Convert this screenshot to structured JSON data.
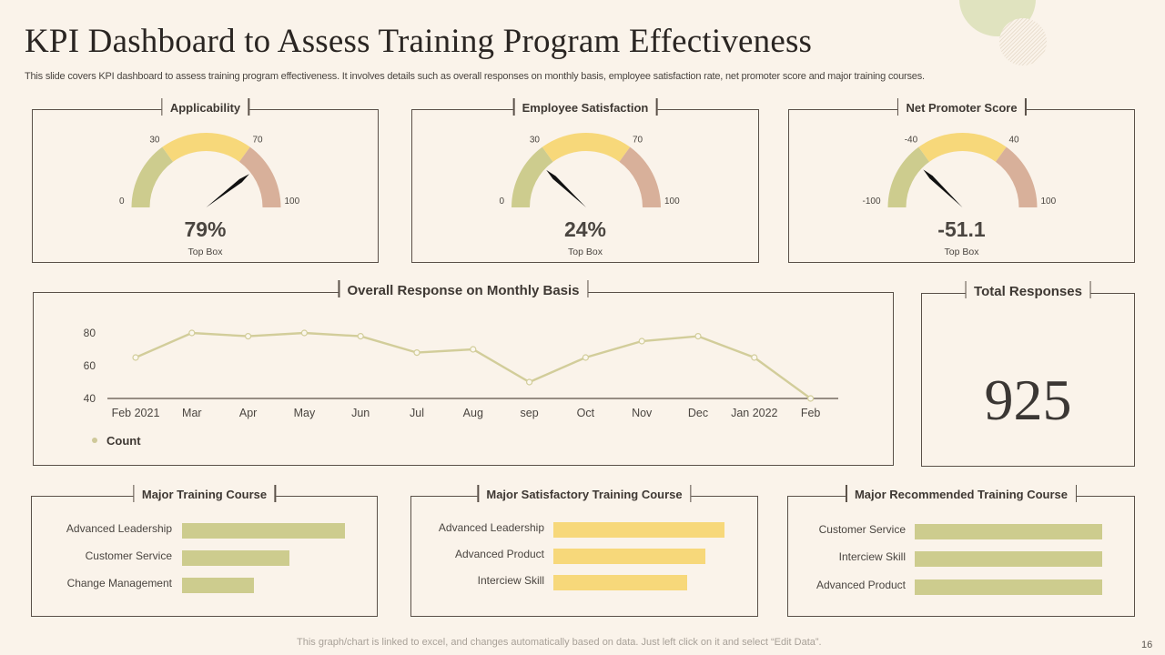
{
  "header": {
    "title": "KPI Dashboard to Assess Training Program Effectiveness",
    "subtitle": "This slide covers KPI dashboard to assess training program effectiveness. It involves details such as overall responses on monthly basis, employee satisfaction rate, net promoter score and major training courses."
  },
  "colors": {
    "background": "#faf3ea",
    "green": "#cdcc8e",
    "yellow": "#f7d87a",
    "peach": "#d8b09a",
    "line": "#d2cd9a",
    "border": "#5a5048"
  },
  "gauges": [
    {
      "title": "Applicability",
      "value": 79,
      "display": "79%",
      "sublabel": "Top Box",
      "min": 0,
      "max": 100,
      "bands": [
        0,
        30,
        70,
        100
      ],
      "labels": [
        "0",
        "30",
        "70",
        "100"
      ]
    },
    {
      "title": "Employee Satisfaction",
      "value": 24,
      "display": "24%",
      "sublabel": "Top Box",
      "min": 0,
      "max": 100,
      "bands": [
        0,
        30,
        70,
        100
      ],
      "labels": [
        "0",
        "30",
        "70",
        "100"
      ]
    },
    {
      "title": "Net Promoter Score",
      "value": -51.1,
      "display": "-51.1",
      "sublabel": "Top Box",
      "min": -100,
      "max": 100,
      "bands": [
        -100,
        -40,
        40,
        100
      ],
      "labels": [
        "-100",
        "-40",
        "40",
        "100"
      ]
    }
  ],
  "chart_data": {
    "type": "line",
    "title": "Overall Response on Monthly Basis",
    "categories": [
      "Feb 2021",
      "Mar",
      "Apr",
      "May",
      "Jun",
      "Jul",
      "Aug",
      "sep",
      "Oct",
      "Nov",
      "Dec",
      "Jan 2022",
      "Feb"
    ],
    "series": [
      {
        "name": "Count",
        "values": [
          65,
          80,
          78,
          80,
          78,
          68,
          70,
          50,
          65,
          75,
          78,
          65,
          40
        ]
      }
    ],
    "ylim": [
      40,
      80
    ],
    "yticks": [
      40,
      60,
      80
    ],
    "xlabel": "",
    "ylabel": "",
    "grid": false,
    "legend": "bottom-left"
  },
  "total_responses": {
    "title": "Total Responses",
    "value": "925"
  },
  "bar_panels": [
    {
      "title": "Major Training Course",
      "color": "#cdcc8e",
      "items": [
        {
          "label": "Advanced Leadership",
          "value": 100
        },
        {
          "label": "Customer Service",
          "value": 66
        },
        {
          "label": "Change Management",
          "value": 44
        }
      ]
    },
    {
      "title": "Major Satisfactory  Training Course",
      "color": "#f7d87a",
      "items": [
        {
          "label": "Advanced Leadership",
          "value": 100
        },
        {
          "label": "Advanced Product",
          "value": 89
        },
        {
          "label": "Interciew Skill",
          "value": 78
        }
      ]
    },
    {
      "title": "Major Recommended Training Course",
      "color": "#cdcc8e",
      "items": [
        {
          "label": "Customer Service",
          "value": 100
        },
        {
          "label": "Interciew Skill",
          "value": 100
        },
        {
          "label": "Advanced Product",
          "value": 100
        }
      ]
    }
  ],
  "footer": {
    "note": "This graph/chart is linked to excel,  and changes automatically based on data. Just left click on it and select “Edit Data”.",
    "page_number": "16"
  }
}
